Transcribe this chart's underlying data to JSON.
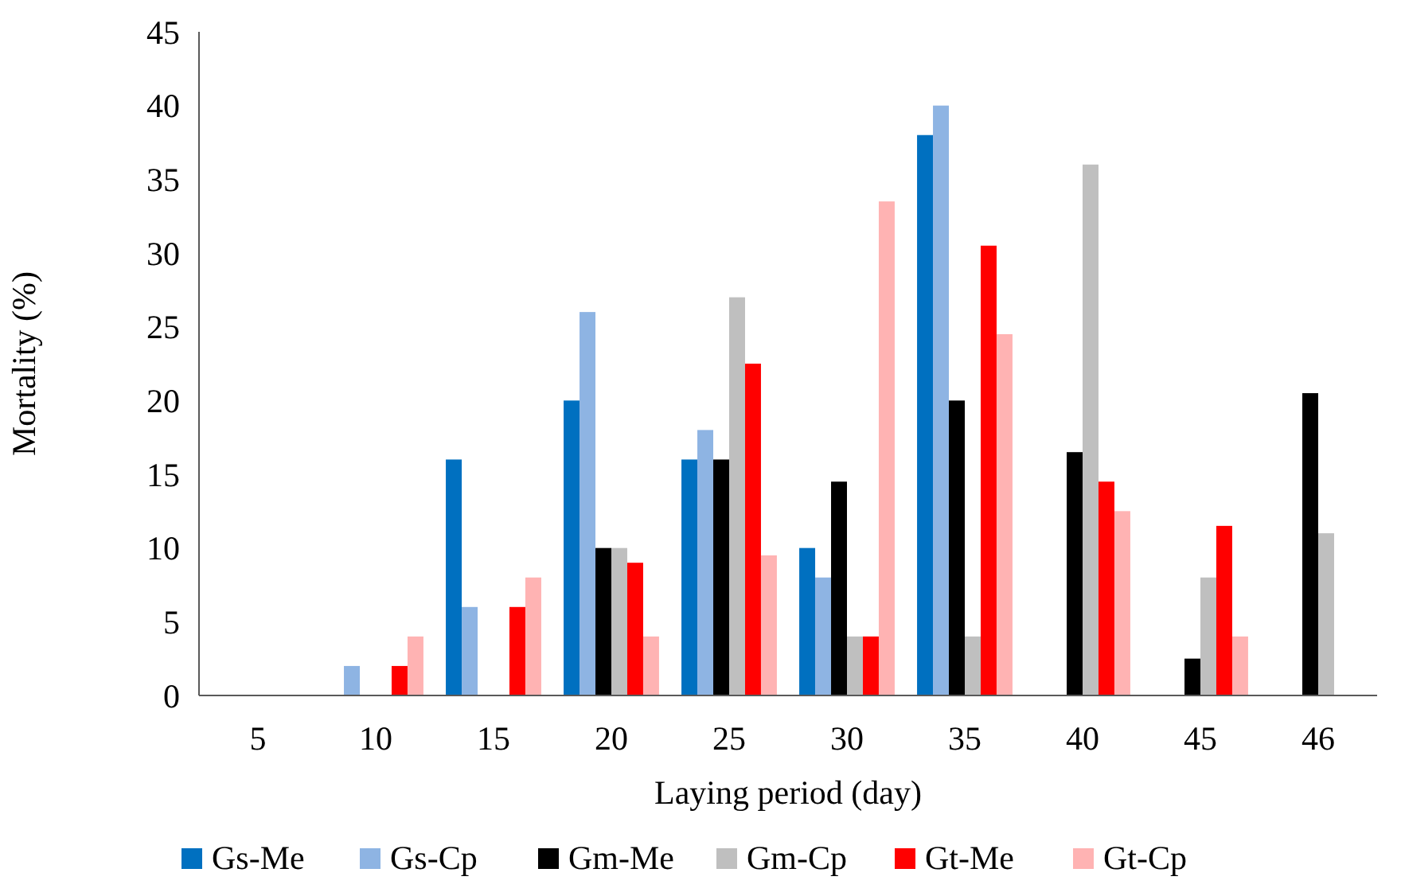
{
  "chart_data": {
    "type": "bar",
    "xlabel": "Laying period (day)",
    "ylabel": "Mortality (%)",
    "categories": [
      "5",
      "10",
      "15",
      "20",
      "25",
      "30",
      "35",
      "40",
      "45",
      "46"
    ],
    "series": [
      {
        "name": "Gs-Me",
        "color": "#0070c0",
        "values": [
          0,
          0,
          16,
          20,
          16,
          10,
          38,
          0,
          0,
          0
        ]
      },
      {
        "name": "Gs-Cp",
        "color": "#8eb4e3",
        "values": [
          0,
          2,
          6,
          26,
          18,
          8,
          40,
          0,
          0,
          0
        ]
      },
      {
        "name": "Gm-Me",
        "color": "#000000",
        "values": [
          0,
          0,
          0,
          10,
          16,
          14.5,
          20,
          16.5,
          2.5,
          20.5
        ]
      },
      {
        "name": "Gm-Cp",
        "color": "#bfbfbf",
        "values": [
          0,
          0,
          0,
          10,
          27,
          4,
          4,
          36,
          8,
          11
        ]
      },
      {
        "name": "Gt-Me",
        "color": "#ff0000",
        "values": [
          0,
          2,
          6,
          9,
          22.5,
          4,
          30.5,
          14.5,
          11.5,
          0
        ]
      },
      {
        "name": "Gt-Cp",
        "color": "#ffb3b3",
        "values": [
          0,
          4,
          8,
          4,
          9.5,
          33.5,
          24.5,
          12.5,
          4,
          0
        ]
      }
    ],
    "ylim": [
      0,
      45
    ],
    "yticks": [
      0,
      5,
      10,
      15,
      20,
      25,
      30,
      35,
      40,
      45
    ],
    "grid": false,
    "legend": "bottom"
  }
}
